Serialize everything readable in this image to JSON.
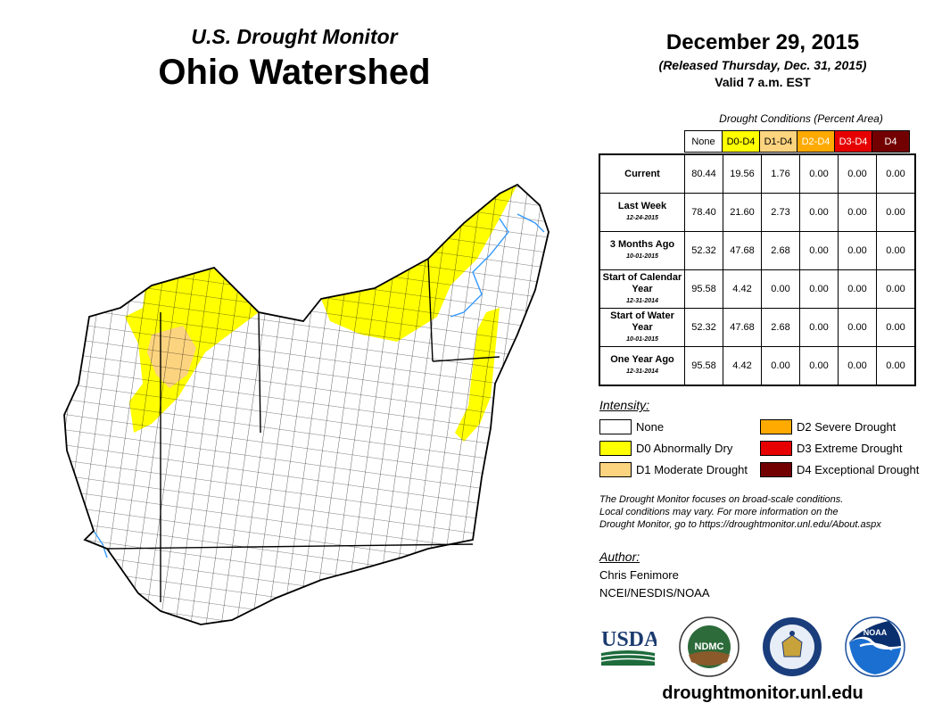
{
  "header": {
    "subtitle": "U.S. Drought Monitor",
    "title": "Ohio Watershed",
    "date": "December 29, 2015",
    "released": "(Released Thursday, Dec. 31, 2015)",
    "valid": "Valid 7 a.m. EST"
  },
  "table": {
    "caption": "Drought Conditions (Percent Area)",
    "columns": [
      {
        "label": "None",
        "color": "#ffffff",
        "text_color": "#000000"
      },
      {
        "label": "D0-D4",
        "color": "#ffff00",
        "text_color": "#000000"
      },
      {
        "label": "D1-D4",
        "color": "#fcd37f",
        "text_color": "#000000"
      },
      {
        "label": "D2-D4",
        "color": "#ffaa00",
        "text_color": "#ffffff"
      },
      {
        "label": "D3-D4",
        "color": "#e60000",
        "text_color": "#ffffff"
      },
      {
        "label": "D4",
        "color": "#730000",
        "text_color": "#ffffff"
      }
    ],
    "rows": [
      {
        "label": "Current",
        "date": "",
        "values": [
          "80.44",
          "19.56",
          "1.76",
          "0.00",
          "0.00",
          "0.00"
        ]
      },
      {
        "label": "Last Week",
        "date": "12-24-2015",
        "values": [
          "78.40",
          "21.60",
          "2.73",
          "0.00",
          "0.00",
          "0.00"
        ]
      },
      {
        "label": "3 Months Ago",
        "date": "10-01-2015",
        "values": [
          "52.32",
          "47.68",
          "2.68",
          "0.00",
          "0.00",
          "0.00"
        ]
      },
      {
        "label": "Start of Calendar Year",
        "date": "12-31-2014",
        "values": [
          "95.58",
          "4.42",
          "0.00",
          "0.00",
          "0.00",
          "0.00"
        ]
      },
      {
        "label": "Start of Water Year",
        "date": "10-01-2015",
        "values": [
          "52.32",
          "47.68",
          "2.68",
          "0.00",
          "0.00",
          "0.00"
        ]
      },
      {
        "label": "One Year Ago",
        "date": "12-31-2014",
        "values": [
          "95.58",
          "4.42",
          "0.00",
          "0.00",
          "0.00",
          "0.00"
        ]
      }
    ]
  },
  "legend": {
    "title": "Intensity:",
    "items": [
      {
        "label": "None",
        "color": "#ffffff"
      },
      {
        "label": "D0 Abnormally Dry",
        "color": "#ffff00"
      },
      {
        "label": "D1 Moderate Drought",
        "color": "#fcd37f"
      },
      {
        "label": "D2 Severe Drought",
        "color": "#ffaa00"
      },
      {
        "label": "D3 Extreme Drought",
        "color": "#e60000"
      },
      {
        "label": "D4 Exceptional Drought",
        "color": "#730000"
      }
    ]
  },
  "note": {
    "line1": "The Drought Monitor focuses on broad-scale conditions.",
    "line2": "Local conditions may vary. For more information on the",
    "line3": "Drought Monitor, go to https://droughtmonitor.unl.edu/About.aspx"
  },
  "author": {
    "label": "Author:",
    "name": "Chris Fenimore",
    "org": "NCEI/NESDIS/NOAA"
  },
  "logos": {
    "usda": "USDA",
    "ndmc": "NDMC",
    "noaa": "NOAA"
  },
  "footer": {
    "site": "droughtmonitor.unl.edu"
  },
  "map_colors": {
    "d0": "#ffff00",
    "d1": "#fcd37f",
    "river": "#3399ff",
    "outline": "#000000"
  }
}
